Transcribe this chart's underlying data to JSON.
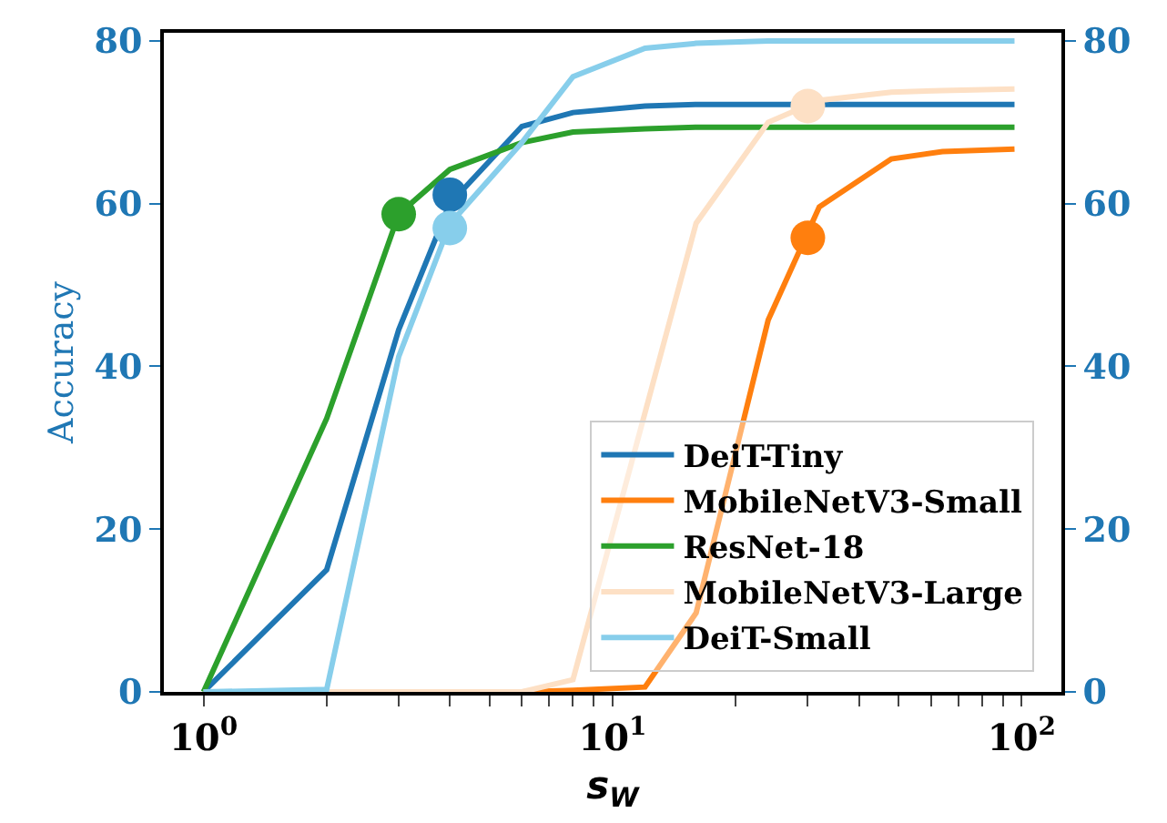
{
  "chart_data": {
    "type": "line",
    "xlabel": "s$_{W}$",
    "ylabel": "Accuracy",
    "log": "x",
    "legend": "bottom right",
    "xlim": [
      0.8,
      125
    ],
    "xticks": [
      {
        "value": 1,
        "label": "10$^{0}$"
      },
      {
        "value": 2,
        "label": null
      },
      {
        "value": 3,
        "label": null
      },
      {
        "value": 4,
        "label": null
      },
      {
        "value": 5,
        "label": null
      },
      {
        "value": 6,
        "label": null
      },
      {
        "value": 7,
        "label": null
      },
      {
        "value": 8,
        "label": null
      },
      {
        "value": 9,
        "label": null
      },
      {
        "value": 10,
        "label": "10$^{1}$"
      },
      {
        "value": 20,
        "label": null
      },
      {
        "value": 30,
        "label": null
      },
      {
        "value": 40,
        "label": null
      },
      {
        "value": 50,
        "label": null
      },
      {
        "value": 60,
        "label": null
      },
      {
        "value": 70,
        "label": null
      },
      {
        "value": 80,
        "label": null
      },
      {
        "value": 90,
        "label": null
      },
      {
        "value": 100,
        "label": "10$^{2}$"
      }
    ],
    "ylim": [
      0,
      81
    ],
    "yticks": [
      0,
      20,
      40,
      60,
      80
    ],
    "y2lim": [
      0,
      81
    ],
    "y2ticks": [
      0,
      20,
      40,
      60,
      80
    ],
    "series": [
      {
        "name": "DeiT-Tiny",
        "color": "#1f77b4",
        "x": [
          1,
          2,
          3,
          4,
          6,
          8,
          12,
          16,
          24,
          32,
          48,
          64,
          96
        ],
        "values": [
          0,
          15,
          44.5,
          60,
          69.5,
          71.2,
          72,
          72.2,
          72.2,
          72.2,
          72.2,
          72.2,
          72.2
        ]
      },
      {
        "name": "MobileNetV3-Small",
        "color": "#ff7f0e",
        "x": [
          4,
          6,
          8,
          12,
          16,
          24,
          32,
          48,
          64,
          96
        ],
        "values": [
          0,
          0,
          0.2,
          0.6,
          9.7,
          45.7,
          59.6,
          65.5,
          66.4,
          66.7
        ]
      },
      {
        "name": "ResNet-18",
        "color": "#2ca02c",
        "x": [
          1,
          2,
          3,
          4,
          6,
          8,
          12,
          16,
          24,
          32,
          48,
          64,
          96
        ],
        "values": [
          0,
          33.6,
          58.7,
          64.2,
          67.5,
          68.8,
          69.2,
          69.4,
          69.4,
          69.4,
          69.4,
          69.4,
          69.4
        ]
      },
      {
        "name": "MobileNetV3-Large",
        "color": "#fde0c5",
        "x": [
          1,
          2,
          3,
          4,
          6,
          8,
          16,
          24,
          32,
          48,
          64,
          96
        ],
        "values": [
          0,
          0,
          0,
          0,
          0,
          1.5,
          57.6,
          70,
          72.7,
          73.7,
          73.9,
          74.1
        ]
      },
      {
        "name": "DeiT-Small",
        "color": "#87ceeb",
        "x": [
          1,
          2,
          3,
          4,
          6,
          8,
          12,
          16,
          24,
          32,
          48,
          64,
          96
        ],
        "values": [
          0,
          0.3,
          41.2,
          57.5,
          67.5,
          75.6,
          79.1,
          79.7,
          80,
          80,
          80,
          80,
          80
        ]
      },
      {
        "type": "scatter",
        "marker": "circle",
        "color": "#1f77b4",
        "x": [
          4
        ],
        "values": [
          61.1
        ]
      },
      {
        "type": "scatter",
        "marker": "circle",
        "color": "#ff7f0e",
        "x": [
          30
        ],
        "values": [
          55.8
        ]
      },
      {
        "type": "scatter",
        "marker": "circle",
        "color": "#2ca02c",
        "x": [
          3
        ],
        "values": [
          58.7
        ]
      },
      {
        "type": "scatter",
        "marker": "circle",
        "color": "#fde0c5",
        "x": [
          30
        ],
        "values": [
          72
        ]
      },
      {
        "type": "scatter",
        "marker": "circle",
        "color": "#87ceeb",
        "x": [
          4
        ],
        "values": [
          57
        ]
      }
    ]
  }
}
